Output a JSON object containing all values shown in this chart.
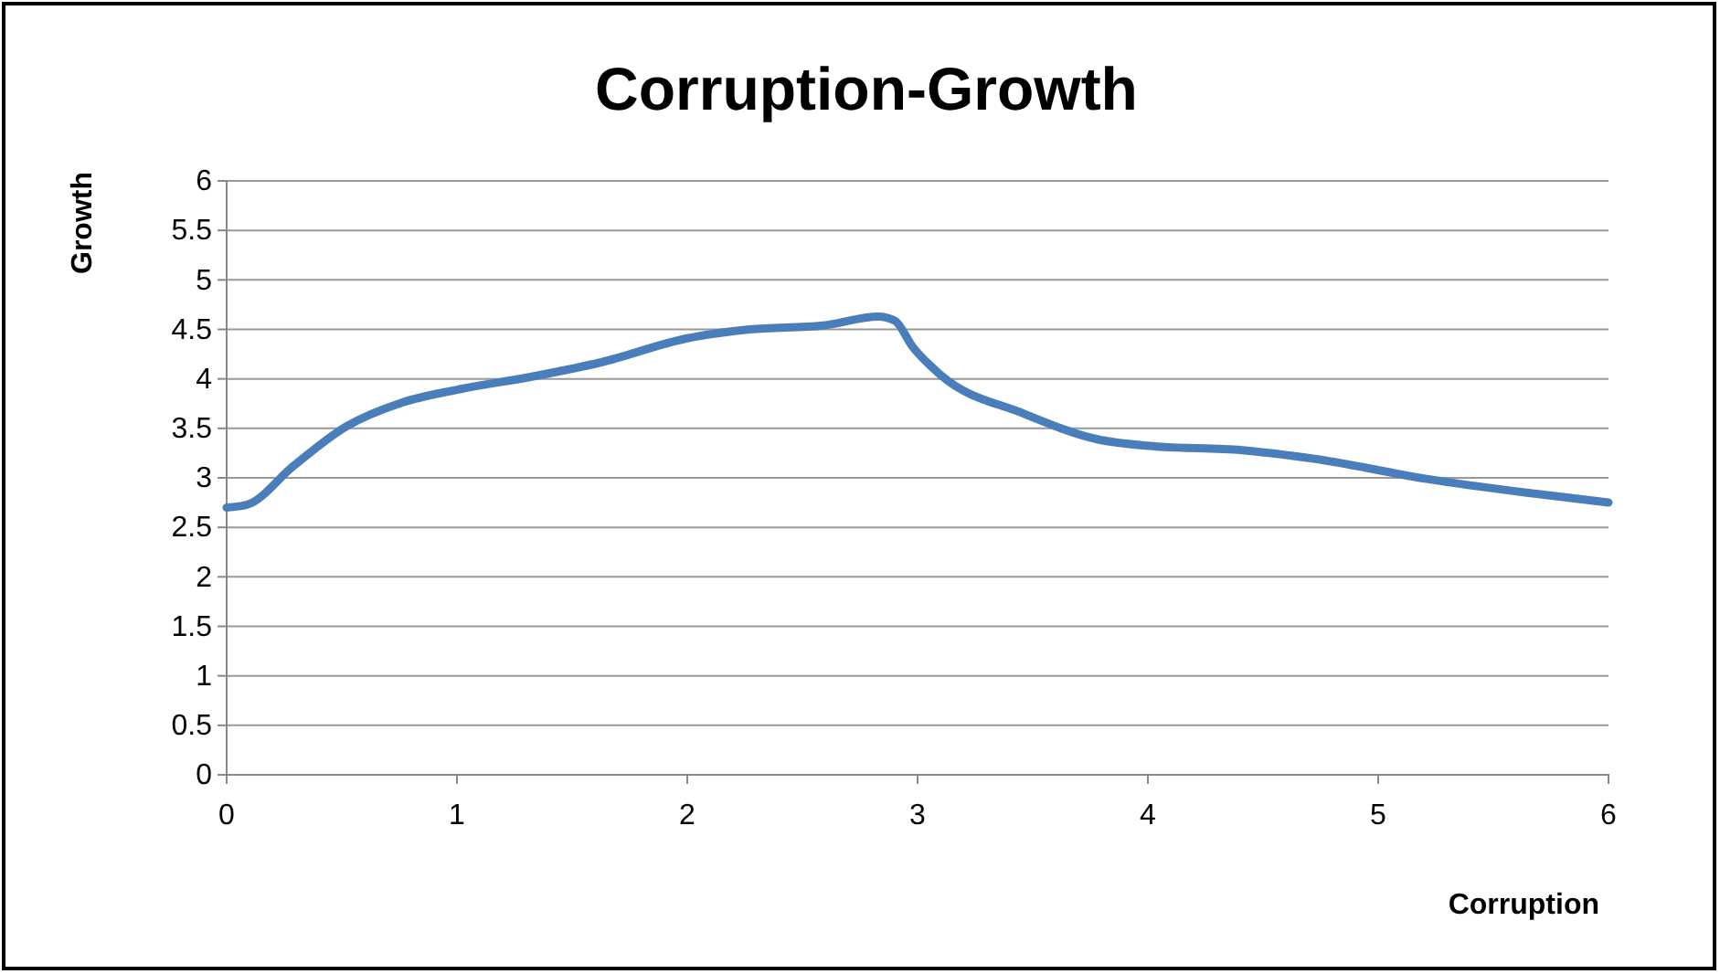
{
  "chart_data": {
    "type": "line",
    "title": "Corruption-Growth",
    "xlabel": "Corruption",
    "ylabel": "Growth",
    "x": [
      0,
      0.09,
      0.29,
      0.52,
      0.76,
      1.0,
      1.32,
      1.63,
      2.0,
      2.27,
      2.59,
      2.83,
      2.9,
      2.98,
      3.1,
      3.46,
      3.78,
      4.02,
      4.41,
      4.73,
      5.21,
      5.68,
      6.0
    ],
    "series": [
      {
        "color": "#4a7ebb",
        "values": [
          2.7,
          2.73,
          3.12,
          3.52,
          3.76,
          3.89,
          4.02,
          4.17,
          4.41,
          4.5,
          4.54,
          4.63,
          4.59,
          4.32,
          4.04,
          3.65,
          3.39,
          3.32,
          3.28,
          3.19,
          2.99,
          2.84,
          2.75
        ]
      }
    ],
    "xlim": [
      0,
      6
    ],
    "xticks": [
      0,
      1,
      2,
      3,
      4,
      5,
      6
    ],
    "ylim": [
      0,
      6
    ],
    "yticks": [
      0,
      0.5,
      1,
      1.5,
      2,
      2.5,
      3,
      3.5,
      4,
      4.5,
      5,
      5.5,
      6
    ],
    "grid": "y",
    "marker": "none",
    "line_style": "solid"
  }
}
